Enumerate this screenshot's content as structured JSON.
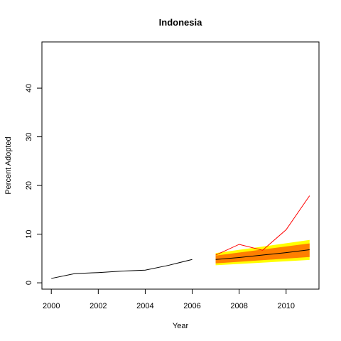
{
  "chart_data": {
    "type": "line",
    "title": "Indonesia",
    "xlabel": "Year",
    "ylabel": "Percent Adopted",
    "xlim": [
      1999.6,
      2011.4
    ],
    "ylim": [
      -1.3,
      49.5
    ],
    "x_ticks": [
      2000,
      2002,
      2004,
      2006,
      2008,
      2010
    ],
    "y_ticks": [
      0,
      10,
      20,
      30,
      40
    ],
    "grid": false,
    "legend": "none",
    "series": [
      {
        "role": "historical",
        "color": "#000000",
        "x": [
          2000,
          2001,
          2002,
          2003,
          2004,
          2005,
          2006
        ],
        "y": [
          0.9,
          1.9,
          2.1,
          2.4,
          2.6,
          3.6,
          4.8
        ]
      },
      {
        "role": "actual",
        "color": "#ff0000",
        "x": [
          2007,
          2008,
          2009,
          2010,
          2011
        ],
        "y": [
          5.7,
          7.9,
          6.7,
          10.9,
          17.9
        ]
      },
      {
        "role": "forecast-median",
        "color": "#000000",
        "x": [
          2007,
          2008,
          2009,
          2010,
          2011
        ],
        "y": [
          4.8,
          5.2,
          5.7,
          6.2,
          6.8
        ]
      }
    ],
    "bands": [
      {
        "role": "outer-interval",
        "color": "#ffff00",
        "x": [
          2007,
          2011
        ],
        "lower": [
          3.6,
          4.7
        ],
        "upper": [
          6.1,
          8.8
        ]
      },
      {
        "role": "inner-interval",
        "color": "#ff7f00",
        "x": [
          2007,
          2011
        ],
        "lower": [
          4.0,
          5.3
        ],
        "upper": [
          5.6,
          8.1
        ]
      }
    ]
  }
}
